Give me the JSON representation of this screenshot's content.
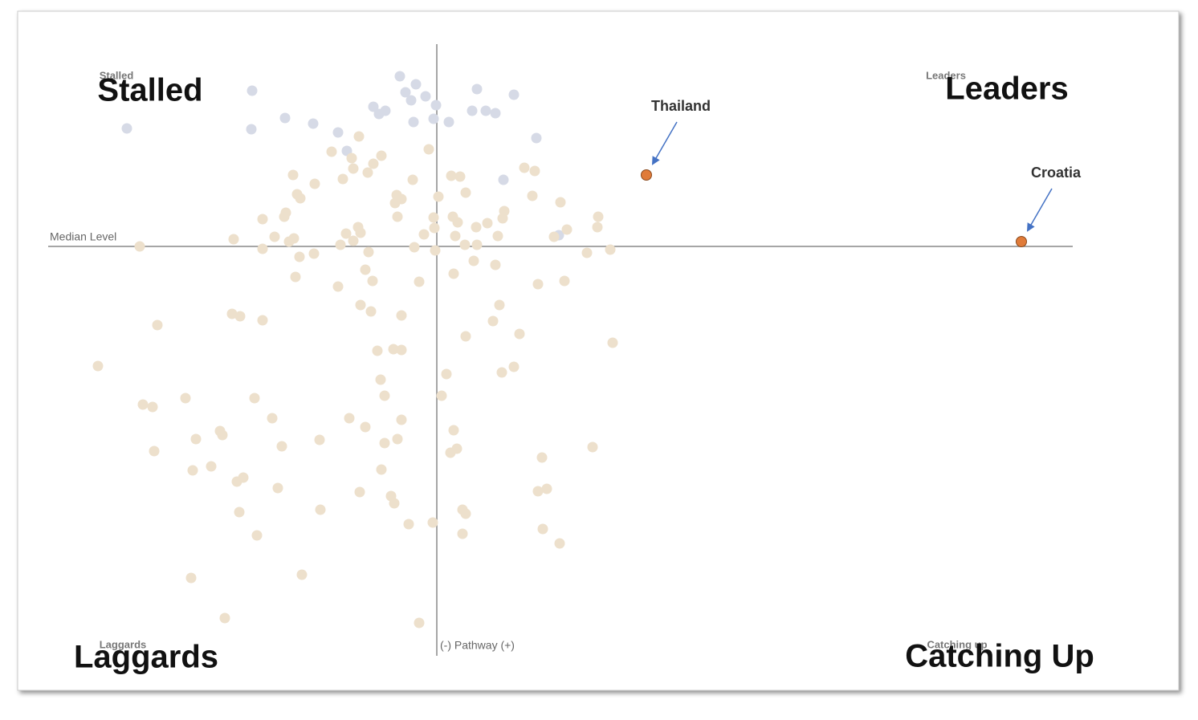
{
  "chart_data": {
    "type": "scatter",
    "quadrant_labels": [
      "Stalled",
      "Leaders",
      "Laggards",
      "Catching up"
    ],
    "quadrant_overlays": [
      "Stalled",
      "Leaders",
      "Laggards",
      "Catching Up"
    ],
    "median_label": "Median Level",
    "pathway_label": "(-) Pathway (+)",
    "xlim": [
      -484,
      792
    ],
    "ylim": [
      -510,
      250
    ],
    "series": [
      {
        "color": "#d6dae6",
        "x": [
          -46,
          -26,
          -230,
          -39,
          -14,
          50,
          96,
          -32,
          -79,
          -64,
          -72,
          -1,
          44,
          61,
          73,
          -386,
          -231,
          -189,
          -154,
          -123,
          -29,
          -4,
          15,
          124,
          -112,
          83,
          152
        ],
        "y": [
          212,
          202,
          194,
          192,
          187,
          196,
          189,
          182,
          174,
          169,
          165,
          176,
          169,
          169,
          166,
          147,
          146,
          160,
          153,
          142,
          155,
          159,
          155,
          135,
          119,
          83,
          14
        ]
      },
      {
        "color": "#ede0cc",
        "x": [
          -97,
          -131,
          -106,
          -69,
          -10,
          -79,
          -104,
          -86,
          -179,
          -152,
          -117,
          -30,
          18,
          29,
          109,
          122,
          -174,
          -170,
          -50,
          -44,
          2,
          36,
          119,
          154,
          -188,
          -190,
          -217,
          -52,
          -49,
          -4,
          20,
          26,
          49,
          63,
          84,
          82,
          201,
          200,
          -98,
          -95,
          -113,
          -16,
          -3,
          -202,
          -178,
          -184,
          -253,
          23,
          76,
          146,
          162,
          -104,
          -120,
          -370,
          -217,
          -171,
          -153,
          -85,
          -28,
          -2,
          35,
          50,
          187,
          216,
          46,
          73,
          -176,
          -89,
          -80,
          -22,
          21,
          126,
          159,
          -123,
          -95,
          -82,
          78,
          -255,
          -245,
          -217,
          -44,
          70,
          -348,
          36,
          103,
          219,
          -74,
          -54,
          -44,
          -422,
          12,
          81,
          96,
          -70,
          -65,
          6,
          -313,
          -227,
          -366,
          -354,
          -205,
          -109,
          -44,
          -89,
          21,
          -270,
          -267,
          -300,
          -146,
          -49,
          -65,
          -193,
          25,
          17,
          194,
          -352,
          131,
          -281,
          -304,
          -69,
          -241,
          -249,
          -198,
          -96,
          126,
          137,
          -57,
          -53,
          -145,
          -246,
          32,
          36,
          -35,
          -5,
          132,
          -224,
          32,
          153,
          -306,
          -168,
          -264,
          -22
        ],
        "y": [
          137,
          118,
          110,
          113,
          121,
          103,
          97,
          92,
          89,
          78,
          84,
          83,
          88,
          87,
          98,
          94,
          65,
          60,
          64,
          59,
          62,
          67,
          63,
          55,
          42,
          37,
          34,
          54,
          37,
          36,
          37,
          30,
          24,
          29,
          44,
          35,
          37,
          24,
          24,
          17,
          16,
          15,
          23,
          12,
          10,
          6,
          9,
          13,
          13,
          12,
          21,
          7,
          2,
          0,
          -3,
          -13,
          -9,
          -7,
          -1,
          -5,
          2,
          2,
          -8,
          -4,
          -18,
          -23,
          -38,
          -29,
          -43,
          -44,
          -34,
          -47,
          -43,
          -50,
          -73,
          -81,
          -73,
          -84,
          -87,
          -92,
          -86,
          -93,
          -98,
          -112,
          -109,
          -120,
          -130,
          -128,
          -129,
          -149,
          -159,
          -157,
          -150,
          -166,
          -186,
          -186,
          -189,
          -189,
          -197,
          -200,
          -214,
          -214,
          -216,
          -225,
          -229,
          -230,
          -235,
          -240,
          -241,
          -240,
          -245,
          -249,
          -252,
          -257,
          -250,
          -255,
          -263,
          -274,
          -279,
          -278,
          -288,
          -293,
          -301,
          -306,
          -305,
          -302,
          -311,
          -320,
          -328,
          -331,
          -328,
          -333,
          -346,
          -344,
          -352,
          -360,
          -358,
          -370,
          -413,
          -409,
          -463,
          -469
        ]
      },
      {
        "color": "#e07b39",
        "labels": [
          "Thailand",
          "Croatia"
        ],
        "x": [
          261,
          728
        ],
        "y": [
          89,
          6
        ]
      }
    ]
  }
}
